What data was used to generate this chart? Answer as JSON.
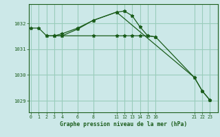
{
  "background_color": "#cce8e8",
  "plot_bg_color": "#cce8e8",
  "grid_color": "#99ccbb",
  "line_color": "#1a5c1a",
  "title": "Graphe pression niveau de la mer (hPa)",
  "xlabel_ticks": [
    0,
    1,
    2,
    3,
    4,
    6,
    8,
    11,
    12,
    13,
    14,
    15,
    16,
    21,
    22,
    23
  ],
  "ylim": [
    1028.55,
    1032.75
  ],
  "yticks": [
    1029,
    1030,
    1031,
    1032
  ],
  "xlim": [
    -0.3,
    24.0
  ],
  "line1_x": [
    0,
    1,
    2,
    3,
    4,
    6,
    8,
    11,
    12,
    13,
    14,
    15,
    16
  ],
  "line1_y": [
    1031.82,
    1031.82,
    1031.52,
    1031.52,
    1031.6,
    1031.82,
    1032.12,
    1032.44,
    1032.48,
    1032.3,
    1031.87,
    1031.52,
    1031.48
  ],
  "line2_x": [
    2,
    3,
    4,
    8,
    11,
    12,
    13,
    14,
    15,
    16,
    21,
    22,
    23
  ],
  "line2_y": [
    1031.52,
    1031.52,
    1031.52,
    1031.52,
    1031.52,
    1031.52,
    1031.52,
    1031.52,
    1031.52,
    1031.48,
    1029.9,
    1029.38,
    1029.02
  ],
  "line3_x": [
    3,
    4,
    6,
    8,
    11,
    21,
    22,
    23
  ],
  "line3_y": [
    1031.52,
    1031.52,
    1031.78,
    1032.12,
    1032.44,
    1029.9,
    1029.38,
    1029.02
  ]
}
